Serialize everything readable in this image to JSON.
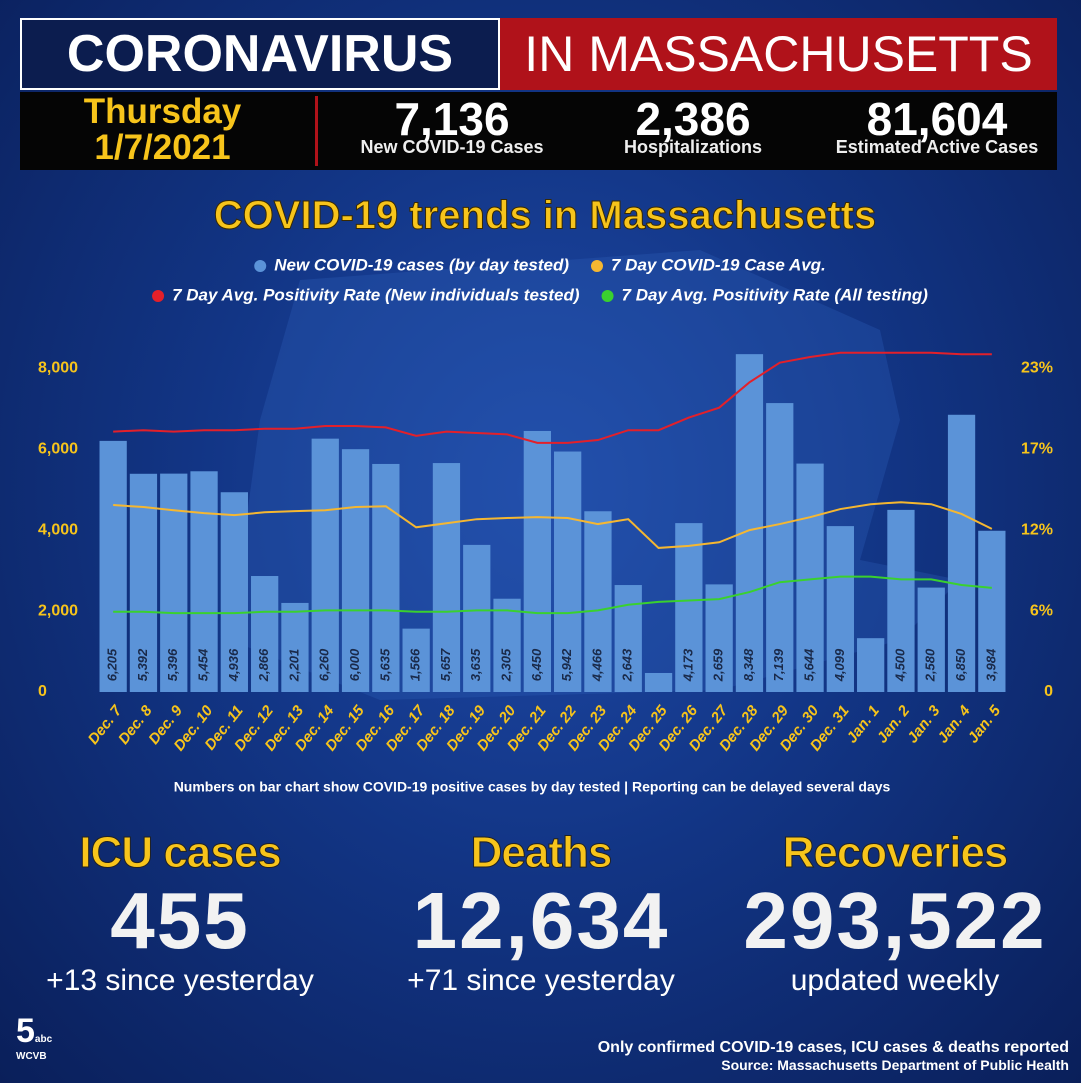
{
  "header": {
    "title_left": "CORONAVIRUS",
    "title_right": "IN MASSACHUSETTS",
    "day": "Thursday",
    "date": "1/7/2021",
    "stats": [
      {
        "value": "7,136",
        "label": "New COVID-19 Cases"
      },
      {
        "value": "2,386",
        "label": "Hospitalizations"
      },
      {
        "value": "81,604",
        "label": "Estimated Active Cases"
      }
    ]
  },
  "chart_data": {
    "type": "bar",
    "title": "COVID-19 trends in Massachusetts",
    "note": "Numbers on bar chart show COVID-19 positive cases by day tested | Reporting can be delayed several days",
    "categories": [
      "Dec. 7",
      "Dec. 8",
      "Dec. 9",
      "Dec. 10",
      "Dec. 11",
      "Dec. 12",
      "Dec. 13",
      "Dec. 14",
      "Dec. 15",
      "Dec. 16",
      "Dec. 17",
      "Dec. 18",
      "Dec. 19",
      "Dec. 20",
      "Dec. 21",
      "Dec. 22",
      "Dec. 23",
      "Dec. 24",
      "Dec. 25",
      "Dec. 26",
      "Dec. 27",
      "Dec. 28",
      "Dec. 29",
      "Dec. 30",
      "Dec. 31",
      "Jan. 1",
      "Jan. 2",
      "Jan. 3",
      "Jan. 4",
      "Jan. 5"
    ],
    "series": [
      {
        "name": "New COVID-19 cases (by day tested)",
        "type": "bar",
        "color": "#5b93d8",
        "values": [
          6205,
          5392,
          5396,
          5454,
          4936,
          2866,
          2201,
          6260,
          6000,
          5635,
          1566,
          5657,
          3635,
          2305,
          6450,
          5942,
          4466,
          2643,
          470,
          4173,
          2659,
          8348,
          7139,
          5644,
          4099,
          1330,
          4500,
          2580,
          6850,
          3984
        ],
        "value_labels": [
          "6,205",
          "5,392",
          "5,396",
          "5,454",
          "4,936",
          "2,866",
          "2,201",
          "6,260",
          "6,000",
          "5,635",
          "1,566",
          "5,657",
          "3,635",
          "2,305",
          "6,450",
          "5,942",
          "4,466",
          "2,643",
          null,
          "4,173",
          "2,659",
          "8,348",
          "7,139",
          "5,644",
          "4,099",
          null,
          "4,500",
          "2,580",
          "6,850",
          "3,984"
        ]
      },
      {
        "name": "7 Day COVID-19 Case Avg.",
        "type": "line",
        "color": "#f5b731",
        "values": [
          4620,
          4570,
          4490,
          4420,
          4370,
          4440,
          4470,
          4490,
          4570,
          4590,
          4070,
          4170,
          4270,
          4300,
          4320,
          4300,
          4150,
          4270,
          3560,
          3610,
          3700,
          4000,
          4150,
          4320,
          4520,
          4640,
          4690,
          4640,
          4400,
          4030
        ]
      },
      {
        "name": "7 Day Avg. Positivity Rate (New individuals tested)",
        "type": "line",
        "axis": "y2",
        "color": "#e3202a",
        "values": [
          18.5,
          18.6,
          18.5,
          18.6,
          18.6,
          18.7,
          18.7,
          18.9,
          18.9,
          18.8,
          18.2,
          18.5,
          18.4,
          18.3,
          17.7,
          17.7,
          17.9,
          18.6,
          18.6,
          19.5,
          20.2,
          22.0,
          23.4,
          23.8,
          24.1,
          24.1,
          24.1,
          24.1,
          24.0,
          24.0
        ]
      },
      {
        "name": "7 Day Avg. Positivity Rate (All testing)",
        "type": "line",
        "axis": "y2",
        "color": "#3ad12e",
        "values": [
          5.7,
          5.7,
          5.6,
          5.6,
          5.6,
          5.7,
          5.7,
          5.8,
          5.8,
          5.8,
          5.7,
          5.7,
          5.8,
          5.8,
          5.6,
          5.6,
          5.8,
          6.2,
          6.4,
          6.5,
          6.6,
          7.1,
          7.8,
          8.0,
          8.2,
          8.2,
          8.0,
          8.0,
          7.6,
          7.4
        ]
      }
    ],
    "ylim": [
      0,
      8500
    ],
    "yticks": [
      0,
      {
        "value": 2000,
        "label": "2,000"
      },
      {
        "value": 4000,
        "label": "4,000"
      },
      {
        "value": 6000,
        "label": "6,000"
      },
      {
        "value": 8000,
        "label": "8,000"
      }
    ],
    "y2lim": [
      0,
      24.44
    ],
    "y2ticks": [
      0,
      {
        "value": 5.75,
        "label": "6%"
      },
      {
        "value": 11.5,
        "label": "12%"
      },
      {
        "value": 17.25,
        "label": "17%"
      },
      {
        "value": 23,
        "label": "23%"
      }
    ],
    "grid": false
  },
  "summary": [
    {
      "title": "ICU cases",
      "value": "455",
      "change": "+13 since yesterday"
    },
    {
      "title": "Deaths",
      "value": "12,634",
      "change": "+71 since yesterday"
    },
    {
      "title": "Recoveries",
      "value": "293,522",
      "change": "updated weekly"
    }
  ],
  "footer": {
    "logo_number": "5",
    "logo_network": "abc",
    "logo_station": "WCVB",
    "note": "Only confirmed COVID-19 cases, ICU cases & deaths reported",
    "source": "Source: Massachusetts Department of Public Health"
  }
}
